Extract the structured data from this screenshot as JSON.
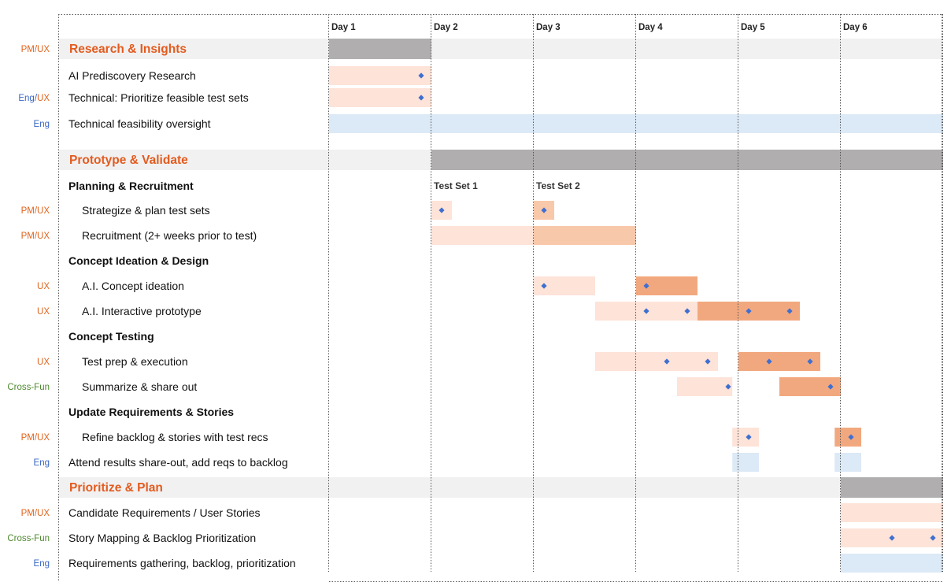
{
  "colors": {
    "pm_ux": "#e0641e",
    "eng": "#3a66c4",
    "cross_fun": "#4e8a2e",
    "section_text": "#e35b1f",
    "section_band": "#f1f1f1",
    "section_bar": "#b0aeae",
    "bar_light": "#fde3d8",
    "bar_mid": "#f8c8aa",
    "bar_dark": "#f2a87e",
    "bar_blue": "#dce9f6",
    "diamond": "#3f6fd0"
  },
  "chart_data": {
    "type": "gantt",
    "title": "",
    "x": [
      "Day 1",
      "Day 2",
      "Day 3",
      "Day 4",
      "Day 5",
      "Day 6"
    ],
    "day_range": [
      0,
      6
    ],
    "markers": [
      {
        "label": "Test Set 1",
        "day": 1.0,
        "row": 5
      },
      {
        "label": "Test Set 2",
        "day": 2.0,
        "row": 5
      }
    ],
    "rows": [
      {
        "kind": "section",
        "label": "Research & Insights",
        "owner": [
          {
            "t": "PM/UX",
            "c": "pm_ux"
          }
        ],
        "bars": [
          {
            "start": 0,
            "end": 1,
            "color": "section_bar"
          }
        ],
        "diamonds": []
      },
      {
        "kind": "task",
        "label": "AI Prediscovery Research",
        "owner": [],
        "bars": [
          {
            "start": 0,
            "end": 1,
            "color": "bar_light"
          }
        ],
        "diamonds": [
          0.9
        ]
      },
      {
        "kind": "task",
        "label": "Technical: Prioritize feasible test sets",
        "owner": [
          {
            "t": "Eng",
            "c": "eng"
          },
          {
            "t": "/",
            "c": "eng"
          },
          {
            "t": "UX",
            "c": "pm_ux"
          }
        ],
        "bars": [
          {
            "start": 0,
            "end": 1,
            "color": "bar_light"
          }
        ],
        "diamonds": [
          0.9
        ]
      },
      {
        "kind": "task",
        "label": "Technical feasibility oversight",
        "owner": [
          {
            "t": "Eng",
            "c": "eng"
          }
        ],
        "bars": [
          {
            "start": 0,
            "end": 6,
            "color": "bar_blue"
          }
        ],
        "diamonds": []
      },
      {
        "kind": "section",
        "label": "Prototype & Validate",
        "owner": [],
        "bars": [
          {
            "start": 1,
            "end": 6,
            "color": "section_bar"
          }
        ],
        "diamonds": []
      },
      {
        "kind": "group",
        "label": "Planning & Recruitment",
        "owner": [],
        "bars": [],
        "diamonds": []
      },
      {
        "kind": "subtask",
        "label": "Strategize & plan test sets",
        "owner": [
          {
            "t": "PM/UX",
            "c": "pm_ux"
          }
        ],
        "bars": [
          {
            "start": 1.0,
            "end": 1.2,
            "color": "bar_light"
          },
          {
            "start": 2.0,
            "end": 2.2,
            "color": "bar_mid"
          }
        ],
        "diamonds": [
          1.1,
          2.1
        ]
      },
      {
        "kind": "subtask",
        "label": "Recruitment (2+ weeks prior to test)",
        "owner": [
          {
            "t": "PM/UX",
            "c": "pm_ux"
          }
        ],
        "bars": [
          {
            "start": 1.0,
            "end": 2.0,
            "color": "bar_light"
          },
          {
            "start": 2.0,
            "end": 3.0,
            "color": "bar_mid"
          }
        ],
        "diamonds": []
      },
      {
        "kind": "group",
        "label": "Concept Ideation & Design",
        "owner": [],
        "bars": [],
        "diamonds": []
      },
      {
        "kind": "subtask",
        "label": "A.I. Concept ideation",
        "owner": [
          {
            "t": "UX",
            "c": "pm_ux"
          }
        ],
        "bars": [
          {
            "start": 2.0,
            "end": 2.6,
            "color": "bar_light"
          },
          {
            "start": 3.0,
            "end": 3.6,
            "color": "bar_dark"
          }
        ],
        "diamonds": [
          2.1,
          3.1
        ]
      },
      {
        "kind": "subtask",
        "label": "A.I. Interactive prototype",
        "owner": [
          {
            "t": "UX",
            "c": "pm_ux"
          }
        ],
        "bars": [
          {
            "start": 2.6,
            "end": 3.6,
            "color": "bar_light"
          },
          {
            "start": 3.6,
            "end": 4.6,
            "color": "bar_dark"
          }
        ],
        "diamonds": [
          3.1,
          3.5,
          4.1,
          4.5
        ]
      },
      {
        "kind": "group",
        "label": "Concept Testing",
        "owner": [],
        "bars": [],
        "diamonds": []
      },
      {
        "kind": "subtask",
        "label": "Test prep & execution",
        "owner": [
          {
            "t": "UX",
            "c": "pm_ux"
          }
        ],
        "bars": [
          {
            "start": 2.6,
            "end": 3.8,
            "color": "bar_light"
          },
          {
            "start": 4.0,
            "end": 4.8,
            "color": "bar_dark"
          }
        ],
        "diamonds": [
          3.3,
          3.7,
          4.3,
          4.7
        ]
      },
      {
        "kind": "subtask",
        "label": "Summarize & share out",
        "owner": [
          {
            "t": "Cross-Fun",
            "c": "cross_fun"
          }
        ],
        "bars": [
          {
            "start": 3.4,
            "end": 3.94,
            "color": "bar_light"
          },
          {
            "start": 4.4,
            "end": 5.0,
            "color": "bar_dark"
          }
        ],
        "diamonds": [
          3.9,
          4.9
        ]
      },
      {
        "kind": "group",
        "label": "Update Requirements & Stories",
        "owner": [],
        "bars": [],
        "diamonds": []
      },
      {
        "kind": "subtask",
        "label": "Refine backlog & stories with test recs",
        "owner": [
          {
            "t": "PM/UX",
            "c": "pm_ux"
          }
        ],
        "bars": [
          {
            "start": 3.94,
            "end": 4.2,
            "color": "bar_light"
          },
          {
            "start": 4.94,
            "end": 5.2,
            "color": "bar_dark"
          }
        ],
        "diamonds": [
          4.1,
          5.1
        ]
      },
      {
        "kind": "task",
        "label": "Attend results share-out, add reqs to backlog",
        "owner": [
          {
            "t": "Eng",
            "c": "eng"
          }
        ],
        "bars": [
          {
            "start": 3.94,
            "end": 4.2,
            "color": "bar_blue"
          },
          {
            "start": 4.94,
            "end": 5.2,
            "color": "bar_blue"
          }
        ],
        "diamonds": []
      },
      {
        "kind": "section",
        "label": "Prioritize & Plan",
        "owner": [],
        "bars": [
          {
            "start": 5,
            "end": 6,
            "color": "section_bar"
          }
        ],
        "diamonds": []
      },
      {
        "kind": "task",
        "label": "Candidate Requirements / User Stories",
        "owner": [
          {
            "t": "PM/UX",
            "c": "pm_ux"
          }
        ],
        "bars": [
          {
            "start": 5,
            "end": 6,
            "color": "bar_light"
          }
        ],
        "diamonds": []
      },
      {
        "kind": "task",
        "label": "Story Mapping & Backlog Prioritization",
        "owner": [
          {
            "t": "Cross-Fun",
            "c": "cross_fun"
          }
        ],
        "bars": [
          {
            "start": 5,
            "end": 6,
            "color": "bar_light"
          }
        ],
        "diamonds": [
          5.5,
          5.9
        ]
      },
      {
        "kind": "task",
        "label": "Requirements gathering, backlog, prioritization",
        "owner": [
          {
            "t": "Eng",
            "c": "eng"
          }
        ],
        "bars": [
          {
            "start": 5,
            "end": 6,
            "color": "bar_blue"
          }
        ],
        "diamonds": []
      }
    ]
  }
}
